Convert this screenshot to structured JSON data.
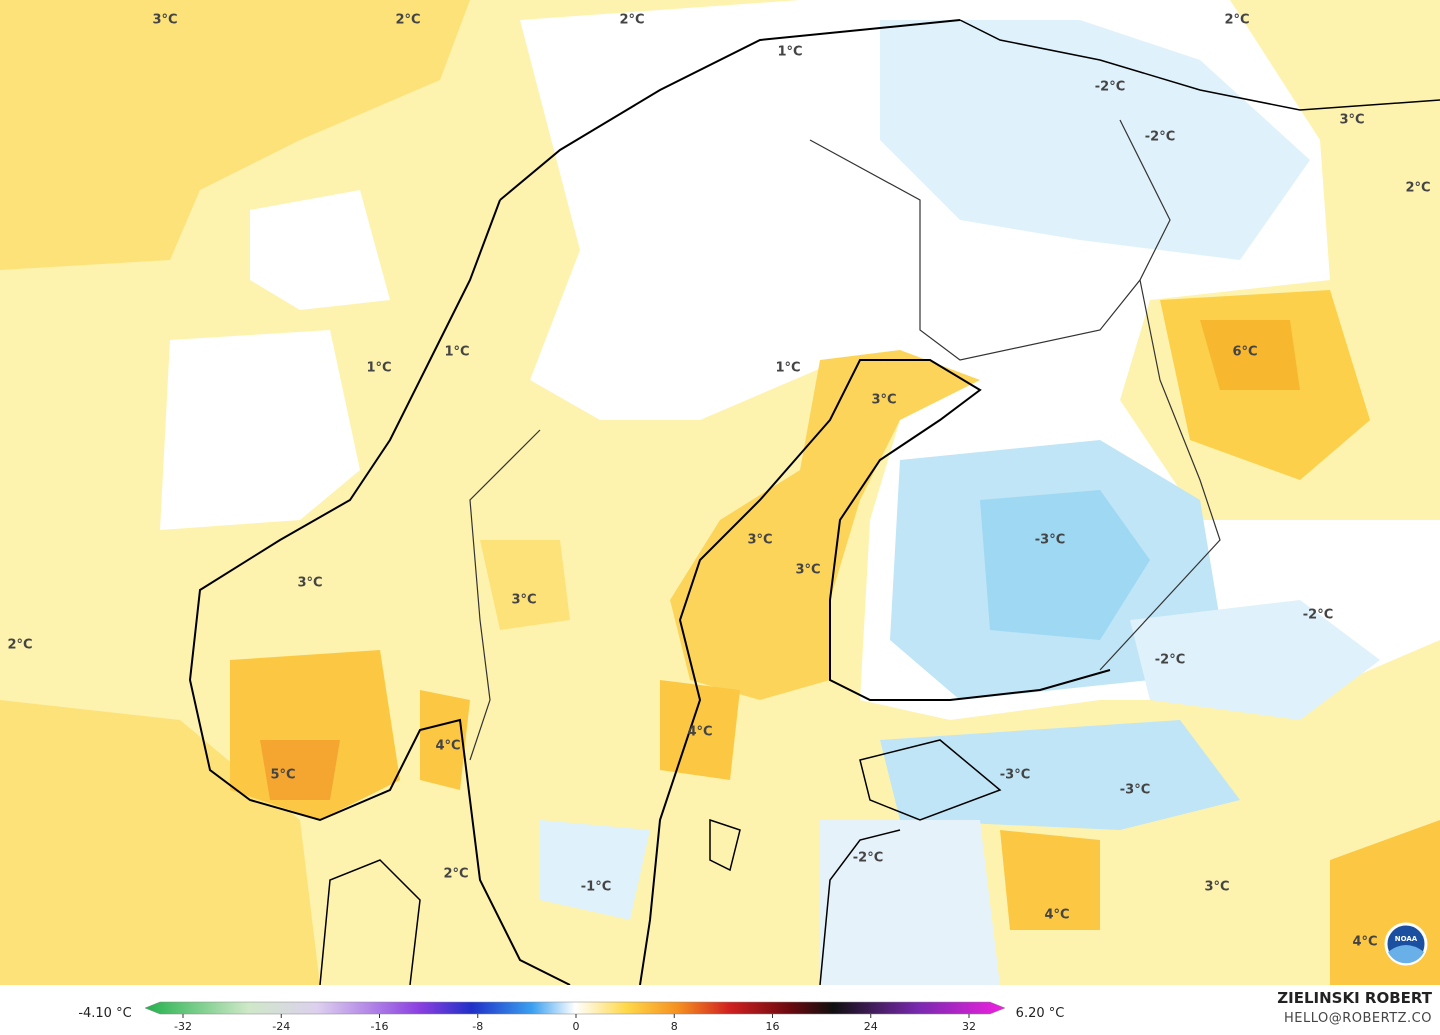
{
  "map": {
    "labels": [
      "3°C",
      "2°C",
      "2°C",
      "2°C",
      "1°C",
      "-2°C",
      "3°C",
      "-2°C",
      "2°C",
      "6°C",
      "1°C",
      "1°C",
      "1°C",
      "3°C",
      "3°C",
      "-3°C",
      "3°C",
      "3°C",
      "3°C",
      "-2°C",
      "2°C",
      "-2°C",
      "4°C",
      "4°C",
      "5°C",
      "-3°C",
      "-3°C",
      "-2°C",
      "2°C",
      "-1°C",
      "3°C",
      "4°C",
      "4°C"
    ]
  },
  "legend": {
    "min_label": "-4.10 °C",
    "max_label": "6.20 °C",
    "ticks": [
      -32,
      -24,
      -16,
      -8,
      0,
      8,
      16,
      24,
      32
    ]
  },
  "credits": {
    "author": "ZIELINSKI ROBERT",
    "email": "HELLO@ROBERTZ.CO",
    "logo": "NOAA"
  }
}
